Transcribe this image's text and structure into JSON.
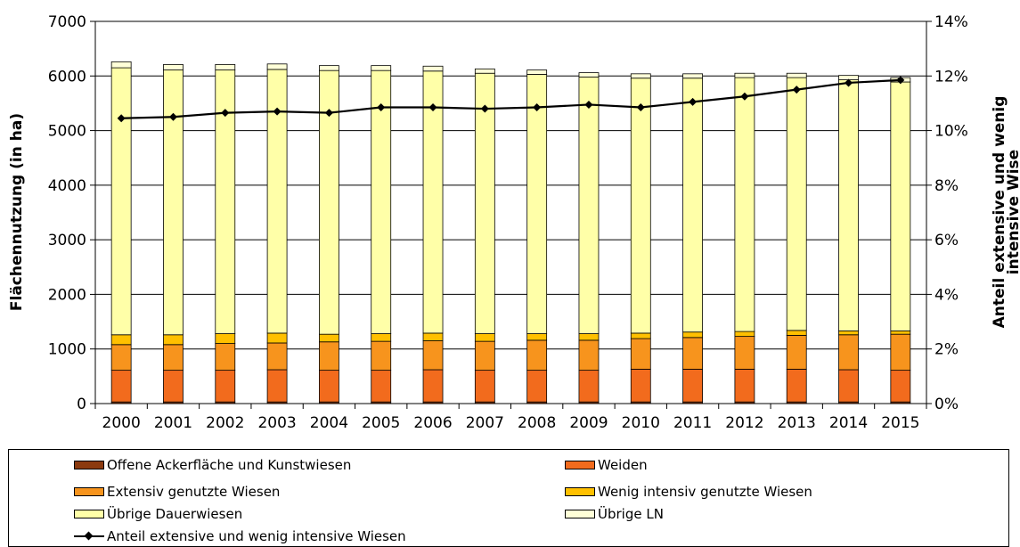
{
  "chart_data": {
    "type": "bar",
    "stacked": true,
    "categories": [
      "2000",
      "2001",
      "2002",
      "2003",
      "2004",
      "2005",
      "2006",
      "2007",
      "2008",
      "2009",
      "2010",
      "2011",
      "2012",
      "2013",
      "2014",
      "2015"
    ],
    "series": [
      {
        "name": "Offene Ackerfläche und Kunstwiesen",
        "color": "#8B3A0F",
        "values": [
          30,
          30,
          30,
          30,
          30,
          30,
          30,
          30,
          30,
          30,
          30,
          30,
          30,
          30,
          30,
          30
        ]
      },
      {
        "name": "Weiden",
        "color": "#F26B1D",
        "values": [
          580,
          580,
          580,
          590,
          580,
          580,
          590,
          580,
          580,
          580,
          600,
          600,
          600,
          600,
          590,
          580
        ]
      },
      {
        "name": "Extensiv genutzte Wiesen",
        "color": "#F7941D",
        "values": [
          470,
          470,
          490,
          490,
          520,
          530,
          530,
          530,
          550,
          550,
          560,
          580,
          600,
          620,
          640,
          660
        ]
      },
      {
        "name": "Wenig intensiv genutzte Wiesen",
        "color": "#FFC000",
        "values": [
          180,
          180,
          180,
          180,
          140,
          140,
          140,
          140,
          120,
          120,
          100,
          100,
          90,
          90,
          70,
          60
        ]
      },
      {
        "name": "Übrige Dauerwiesen",
        "color": "#FFFFA8",
        "values": [
          4890,
          4850,
          4830,
          4830,
          4830,
          4820,
          4800,
          4770,
          4750,
          4700,
          4670,
          4650,
          4650,
          4630,
          4600,
          4560
        ]
      },
      {
        "name": "Übrige LN",
        "color": "#FFFFD8",
        "values": [
          110,
          100,
          100,
          100,
          90,
          90,
          90,
          80,
          80,
          80,
          80,
          80,
          80,
          80,
          80,
          80
        ]
      }
    ],
    "line_series": {
      "name": "Anteil extensive und wenig intensive Wiesen",
      "axis": "right",
      "values": [
        10.45,
        10.5,
        10.65,
        10.7,
        10.65,
        10.85,
        10.85,
        10.8,
        10.85,
        10.95,
        10.85,
        11.05,
        11.25,
        11.5,
        11.75,
        11.85
      ]
    },
    "ylabel": "Flächennutzung (in ha)",
    "y2label_lines": [
      "Anteil extensive und wenig",
      "intensive Wise"
    ],
    "ylim": [
      0,
      7000
    ],
    "yticks": [
      0,
      1000,
      2000,
      3000,
      4000,
      5000,
      6000,
      7000
    ],
    "y2lim": [
      0,
      14
    ],
    "y2ticks": [
      "0%",
      "2%",
      "4%",
      "6%",
      "8%",
      "10%",
      "12%",
      "14%"
    ],
    "legend_position": "bottom"
  }
}
